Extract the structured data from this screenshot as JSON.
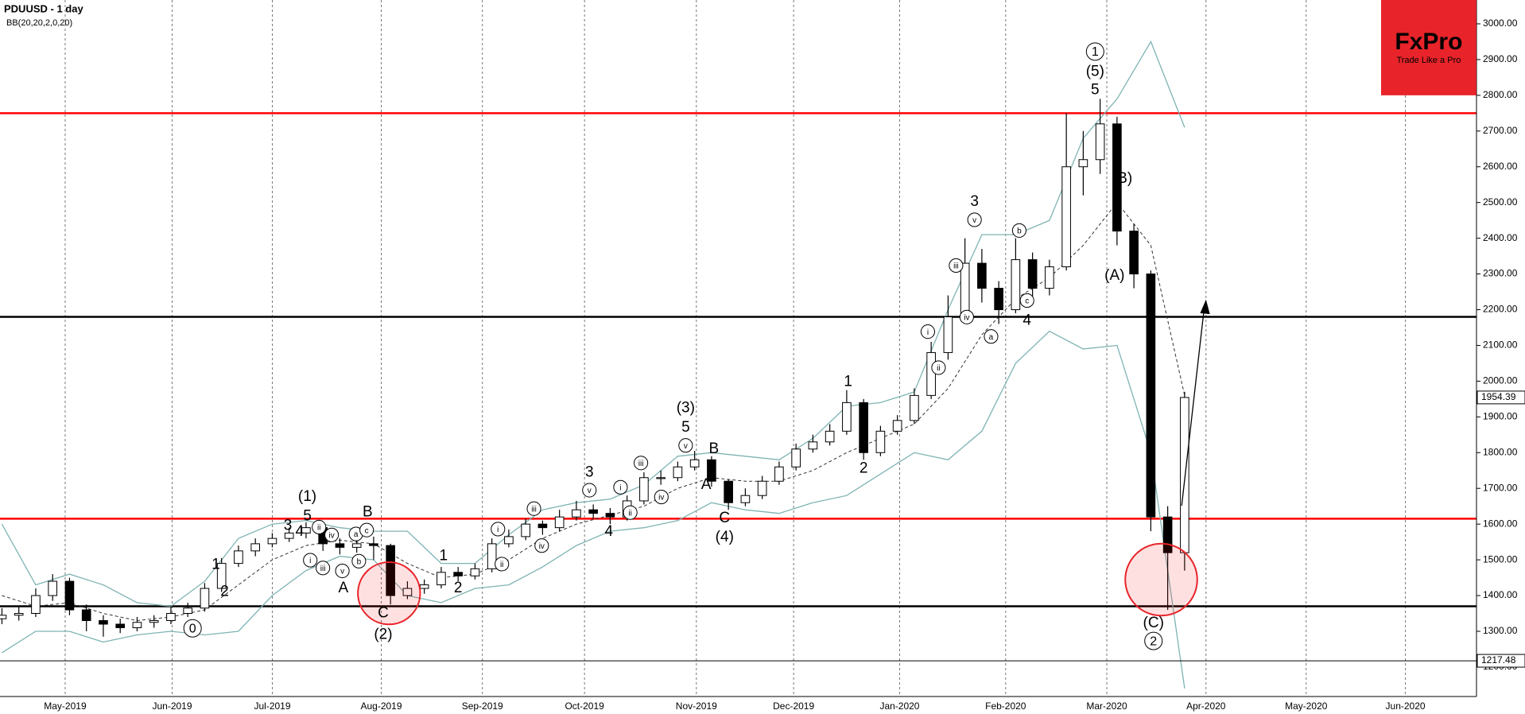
{
  "chart_data": {
    "type": "candlestick",
    "title": "PDUUSD  - 1 day",
    "indicator": "BB(20,20,2,0,20)",
    "open": [
      1335,
      1345,
      1350,
      1400,
      1440,
      1360,
      1330,
      1320,
      1310,
      1325,
      1330,
      1350,
      1365,
      1420,
      1490,
      1525,
      1545,
      1560,
      1575,
      1590,
      1545,
      1535,
      1545,
      1540,
      1400,
      1420,
      1430,
      1465,
      1455,
      1475,
      1545,
      1565,
      1600,
      1590,
      1620,
      1640,
      1630,
      1620,
      1665,
      1730,
      1730,
      1760,
      1780,
      1720,
      1660,
      1680,
      1720,
      1760,
      1810,
      1830,
      1860,
      1940,
      1800,
      1860,
      1890,
      1960,
      2080,
      2180,
      2330,
      2260,
      2200,
      2340,
      2260,
      2320,
      2600,
      2620,
      2720,
      2420,
      2300,
      1620,
      1520
    ],
    "high": [
      1365,
      1370,
      1420,
      1460,
      1450,
      1375,
      1345,
      1335,
      1340,
      1345,
      1370,
      1380,
      1435,
      1505,
      1540,
      1560,
      1575,
      1590,
      1605,
      1600,
      1560,
      1565,
      1565,
      1545,
      1440,
      1445,
      1480,
      1480,
      1490,
      1560,
      1585,
      1615,
      1610,
      1640,
      1665,
      1655,
      1645,
      1680,
      1745,
      1750,
      1775,
      1805,
      1790,
      1725,
      1700,
      1735,
      1775,
      1825,
      1850,
      1880,
      1975,
      1950,
      1875,
      1905,
      1980,
      2110,
      2240,
      2400,
      2370,
      2280,
      2400,
      2360,
      2340,
      2750,
      2700,
      2790,
      2740,
      2440,
      2310,
      1650,
      1970
    ],
    "low": [
      1320,
      1330,
      1340,
      1385,
      1345,
      1300,
      1285,
      1295,
      1300,
      1310,
      1320,
      1340,
      1355,
      1410,
      1480,
      1510,
      1535,
      1550,
      1560,
      1525,
      1515,
      1520,
      1500,
      1375,
      1390,
      1405,
      1420,
      1440,
      1445,
      1465,
      1535,
      1555,
      1570,
      1580,
      1610,
      1615,
      1600,
      1610,
      1655,
      1710,
      1720,
      1750,
      1705,
      1640,
      1650,
      1670,
      1710,
      1750,
      1800,
      1820,
      1850,
      1780,
      1790,
      1850,
      1880,
      1950,
      2060,
      2170,
      2220,
      2160,
      2190,
      2230,
      2240,
      2310,
      2520,
      2580,
      2380,
      2260,
      1580,
      1360,
      1470
    ],
    "close": [
      1345,
      1350,
      1400,
      1440,
      1360,
      1330,
      1320,
      1310,
      1325,
      1330,
      1350,
      1365,
      1420,
      1490,
      1525,
      1545,
      1560,
      1575,
      1590,
      1545,
      1535,
      1545,
      1540,
      1400,
      1420,
      1430,
      1465,
      1455,
      1475,
      1545,
      1565,
      1600,
      1590,
      1620,
      1640,
      1630,
      1620,
      1665,
      1730,
      1730,
      1760,
      1780,
      1720,
      1660,
      1680,
      1720,
      1760,
      1810,
      1830,
      1860,
      1940,
      1800,
      1860,
      1890,
      1960,
      2080,
      2180,
      2330,
      2260,
      2200,
      2340,
      2260,
      2320,
      2600,
      2620,
      2720,
      2420,
      2300,
      1620,
      1520,
      1954.39
    ],
    "up_color": "#ffffff",
    "down_color": "#000000",
    "bands": {
      "color": "#7fb3b3",
      "upper": [
        1600,
        1430,
        1460,
        1430,
        1380,
        1370,
        1440,
        1560,
        1600,
        1610,
        1590,
        1580,
        1580,
        1490,
        1490,
        1570,
        1640,
        1660,
        1670,
        1710,
        1790,
        1800,
        1790,
        1780,
        1840,
        1930,
        1940,
        1970,
        2200,
        2410,
        2410,
        2450,
        2680,
        2790,
        2950,
        2710
      ],
      "middle": [
        1400,
        1370,
        1380,
        1350,
        1330,
        1340,
        1360,
        1430,
        1500,
        1540,
        1555,
        1545,
        1490,
        1450,
        1460,
        1500,
        1560,
        1600,
        1625,
        1650,
        1700,
        1730,
        1720,
        1720,
        1750,
        1800,
        1840,
        1880,
        1980,
        2130,
        2230,
        2290,
        2380,
        2500,
        2380,
        1960
      ],
      "lower": [
        1240,
        1300,
        1300,
        1270,
        1290,
        1300,
        1290,
        1300,
        1400,
        1470,
        1510,
        1500,
        1400,
        1380,
        1420,
        1430,
        1480,
        1540,
        1580,
        1590,
        1610,
        1660,
        1640,
        1630,
        1660,
        1680,
        1740,
        1800,
        1780,
        1860,
        2050,
        2140,
        2090,
        2100,
        1800,
        1140
      ]
    },
    "ylim": [
      1117.5,
      3066.7
    ],
    "yticks": [
      {
        "value": 1200,
        "label": "1200.00"
      },
      {
        "value": 1300,
        "label": "1300.00"
      },
      {
        "value": 1400,
        "label": "1400.00"
      },
      {
        "value": 1500,
        "label": "1500.00"
      },
      {
        "value": 1600,
        "label": "1600.00"
      },
      {
        "value": 1700,
        "label": "1700.00"
      },
      {
        "value": 1800,
        "label": "1800.00"
      },
      {
        "value": 1900,
        "label": "1900.00"
      },
      {
        "value": 2000,
        "label": "2000.00"
      },
      {
        "value": 2100,
        "label": "2100.00"
      },
      {
        "value": 2200,
        "label": "2200.00"
      },
      {
        "value": 2300,
        "label": "2300.00"
      },
      {
        "value": 2400,
        "label": "2400.00"
      },
      {
        "value": 2500,
        "label": "2500.00"
      },
      {
        "value": 2600,
        "label": "2600.00"
      },
      {
        "value": 2700,
        "label": "2700.00"
      },
      {
        "value": 2800,
        "label": "2800.00"
      },
      {
        "value": 2900,
        "label": "2900.00"
      },
      {
        "value": 3000,
        "label": "3000.00"
      }
    ],
    "month_labels": [
      "May-2019",
      "Jun-2019",
      "Jul-2019",
      "Aug-2019",
      "Sep-2019",
      "Oct-2019",
      "Nov-2019",
      "Dec-2019",
      "Jan-2020",
      "Feb-2020",
      "Mar-2020",
      "Apr-2020",
      "May-2020",
      "Jun-2020"
    ],
    "levels": [
      {
        "value": 2750,
        "color": "#ff0000"
      },
      {
        "value": 2180,
        "color": "#000000"
      },
      {
        "value": 1615,
        "color": "#ff0000"
      },
      {
        "value": 1370,
        "color": "#000000"
      }
    ],
    "price_labels": [
      {
        "value": 1954.39,
        "label": "1954.39"
      },
      {
        "value": 1217.48,
        "label": "1217.48"
      }
    ],
    "annotations": [
      {
        "text": "(1)",
        "circled": false
      },
      {
        "text": "5",
        "circled": false
      },
      {
        "text": "3",
        "circled": false
      },
      {
        "text": "4",
        "circled": false
      },
      {
        "text": "ii",
        "circled": true
      },
      {
        "text": "iv",
        "circled": true
      },
      {
        "text": "i",
        "circled": true
      },
      {
        "text": "iii",
        "circled": true
      },
      {
        "text": "v",
        "circled": true
      },
      {
        "text": "a",
        "circled": true
      },
      {
        "text": "c",
        "circled": true
      },
      {
        "text": "b",
        "circled": true
      },
      {
        "text": "B",
        "circled": false
      },
      {
        "text": "A",
        "circled": false
      },
      {
        "text": "1",
        "circled": false
      },
      {
        "text": "2",
        "circled": false
      },
      {
        "text": "0",
        "circled": true
      },
      {
        "text": "C",
        "circled": false
      },
      {
        "text": "(2)",
        "circled": false
      },
      {
        "text": "1",
        "circled": false
      },
      {
        "text": "2",
        "circled": false
      },
      {
        "text": "i",
        "circled": true
      },
      {
        "text": "ii",
        "circled": true
      },
      {
        "text": "iii",
        "circled": true
      },
      {
        "text": "iv",
        "circled": true
      },
      {
        "text": "3",
        "circled": false
      },
      {
        "text": "v",
        "circled": true
      },
      {
        "text": "4",
        "circled": false
      },
      {
        "text": "i",
        "circled": true
      },
      {
        "text": "ii",
        "circled": true
      },
      {
        "text": "iii",
        "circled": true
      },
      {
        "text": "iv",
        "circled": true
      },
      {
        "text": "(3)",
        "circled": false
      },
      {
        "text": "5",
        "circled": false
      },
      {
        "text": "v",
        "circled": true
      },
      {
        "text": "B",
        "circled": false
      },
      {
        "text": "A",
        "circled": false
      },
      {
        "text": "C",
        "circled": false
      },
      {
        "text": "(4)",
        "circled": false
      },
      {
        "text": "1",
        "circled": false
      },
      {
        "text": "2",
        "circled": false
      },
      {
        "text": "3",
        "circled": false
      },
      {
        "text": "v",
        "circled": true
      },
      {
        "text": "iii",
        "circled": true
      },
      {
        "text": "i",
        "circled": true
      },
      {
        "text": "ii",
        "circled": true
      },
      {
        "text": "iv",
        "circled": true
      },
      {
        "text": "b",
        "circled": true
      },
      {
        "text": "a",
        "circled": true
      },
      {
        "text": "c",
        "circled": true
      },
      {
        "text": "4",
        "circled": false
      },
      {
        "text": "1",
        "circled": true
      },
      {
        "text": "(5)",
        "circled": false
      },
      {
        "text": "5",
        "circled": false
      },
      {
        "text": "(B)",
        "circled": false
      },
      {
        "text": "(A)",
        "circled": false
      },
      {
        "text": "(C)",
        "circled": false
      },
      {
        "text": "2",
        "circled": true
      }
    ],
    "logo": {
      "name": "FxPro",
      "tagline": "Trade Like a Pro",
      "color": "#e8242a"
    }
  }
}
